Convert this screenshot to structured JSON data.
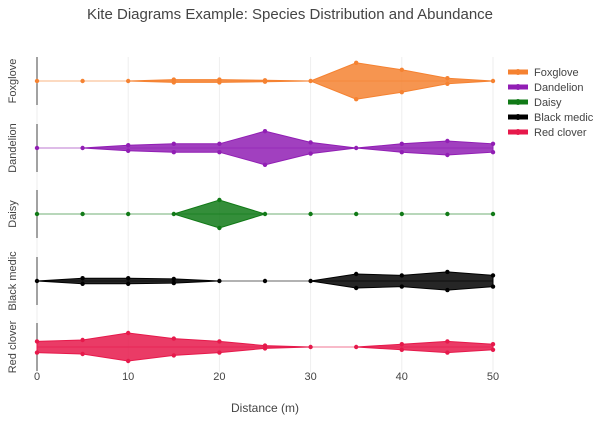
{
  "chart_data": {
    "type": "area",
    "title": "Kite Diagrams Example: Species Distribution and Abundance",
    "xlabel": "Distance (m)",
    "xlim": [
      0,
      50
    ],
    "x_ticks": [
      0,
      10,
      20,
      30,
      40,
      50
    ],
    "x": [
      0,
      5,
      10,
      15,
      20,
      25,
      30,
      35,
      40,
      45,
      50
    ],
    "grid": true,
    "legend_position": "right",
    "series": [
      {
        "name": "Foxglove",
        "color": "#f58231",
        "values": [
          0,
          0,
          0,
          0.1,
          0.1,
          0.05,
          0,
          1.3,
          0.8,
          0.2,
          0
        ]
      },
      {
        "name": "Dandelion",
        "color": "#911eb4",
        "values": [
          0,
          0,
          0.2,
          0.3,
          0.3,
          1.2,
          0.4,
          0,
          0.3,
          0.5,
          0.3
        ]
      },
      {
        "name": "Daisy",
        "color": "#117a17",
        "values": [
          0,
          0,
          0,
          0,
          1.0,
          0,
          0,
          0,
          0,
          0,
          0
        ]
      },
      {
        "name": "Black medic",
        "color": "#000000",
        "values": [
          0,
          0.2,
          0.2,
          0.15,
          0,
          0,
          0,
          0.5,
          0.4,
          0.65,
          0.4
        ]
      },
      {
        "name": "Red clover",
        "color": "#e6194b",
        "values": [
          0.4,
          0.5,
          1.0,
          0.6,
          0.4,
          0.1,
          0,
          0,
          0.2,
          0.4,
          0.2
        ]
      }
    ]
  }
}
